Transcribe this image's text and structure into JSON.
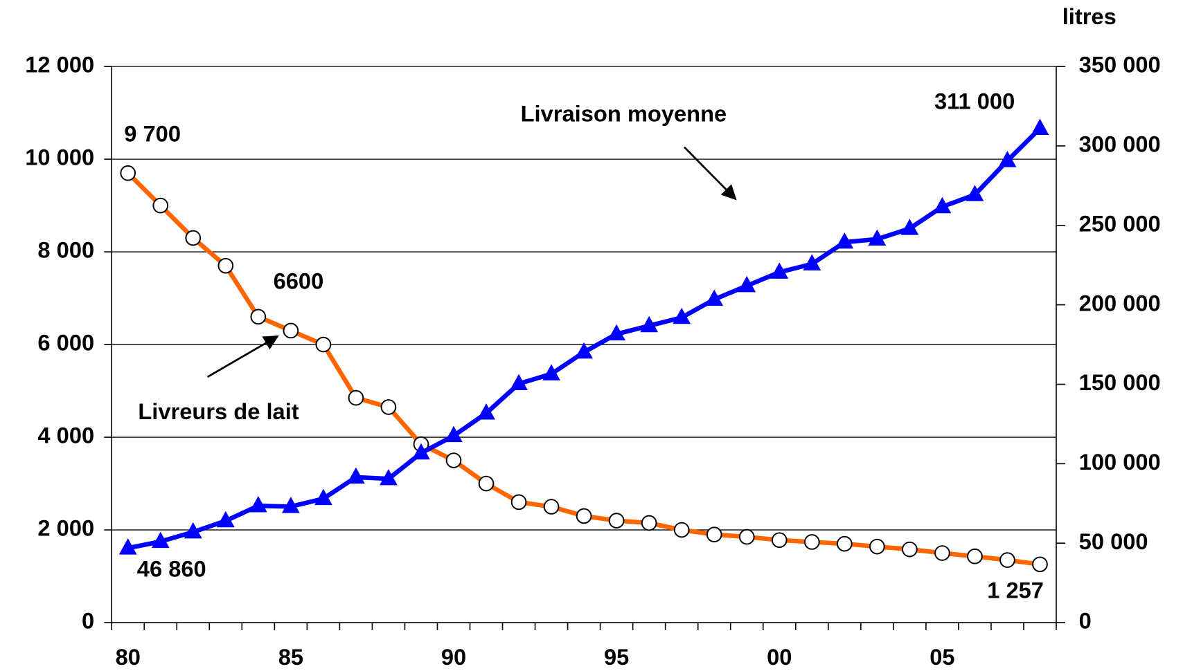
{
  "chart_data": {
    "type": "line",
    "y2label": "litres",
    "categories": [
      "80",
      null,
      null,
      null,
      null,
      "85",
      null,
      null,
      null,
      null,
      "90",
      null,
      null,
      null,
      null,
      "95",
      null,
      null,
      null,
      null,
      "00",
      null,
      null,
      null,
      null,
      "05",
      null,
      null,
      null
    ],
    "series": [
      {
        "name": "Livreurs de lait",
        "color": "#ff6600",
        "marker": "circle",
        "values": [
          9700,
          9000,
          8300,
          7700,
          6600,
          6300,
          6000,
          4850,
          4650,
          3850,
          3500,
          3000,
          2600,
          2500,
          2300,
          2200,
          2150,
          2000,
          1900,
          1850,
          1780,
          1740,
          1700,
          1640,
          1580,
          1500,
          1430,
          1350,
          1257
        ],
        "value_labels": [
          "9 700",
          null,
          null,
          null,
          "6600",
          null,
          null,
          null,
          null,
          null,
          null,
          null,
          null,
          null,
          null,
          null,
          null,
          null,
          null,
          null,
          null,
          null,
          null,
          null,
          null,
          null,
          null,
          null,
          "1 257"
        ]
      },
      {
        "name": "Livraison moyenne",
        "color": "#0000ff",
        "marker": "triangle",
        "axis": "y2",
        "values": [
          46860,
          51000,
          57000,
          64000,
          73500,
          73000,
          78000,
          91500,
          90500,
          106700,
          117600,
          131800,
          150300,
          156500,
          170200,
          181600,
          186800,
          192000,
          203400,
          212000,
          220500,
          225700,
          239400,
          241300,
          248000,
          261700,
          269300,
          290700,
          311000
        ],
        "value_labels": [
          "46 860",
          null,
          null,
          null,
          null,
          null,
          null,
          null,
          null,
          null,
          null,
          null,
          null,
          null,
          null,
          null,
          null,
          null,
          null,
          null,
          null,
          null,
          null,
          null,
          null,
          null,
          null,
          null,
          "311 000"
        ]
      }
    ],
    "ylim": [
      0,
      12000
    ],
    "yticks": [
      0,
      {
        "value": 2000,
        "label": "2 000"
      },
      {
        "value": 4000,
        "label": "4 000"
      },
      {
        "value": 6000,
        "label": "6 000"
      },
      {
        "value": 8000,
        "label": "8 000"
      },
      {
        "value": 10000,
        "label": "10 000"
      },
      {
        "value": 12000,
        "label": "12 000"
      }
    ],
    "y2lim": [
      0,
      350000
    ],
    "y2ticks": [
      0,
      {
        "value": 50000,
        "label": "50 000"
      },
      {
        "value": 100000,
        "label": "100 000"
      },
      {
        "value": 150000,
        "label": "150 000"
      },
      {
        "value": 200000,
        "label": "200 000"
      },
      {
        "value": 250000,
        "label": "250 000"
      },
      {
        "value": 300000,
        "label": "300 000"
      },
      {
        "value": 350000,
        "label": "350 000"
      }
    ],
    "grid": true
  }
}
